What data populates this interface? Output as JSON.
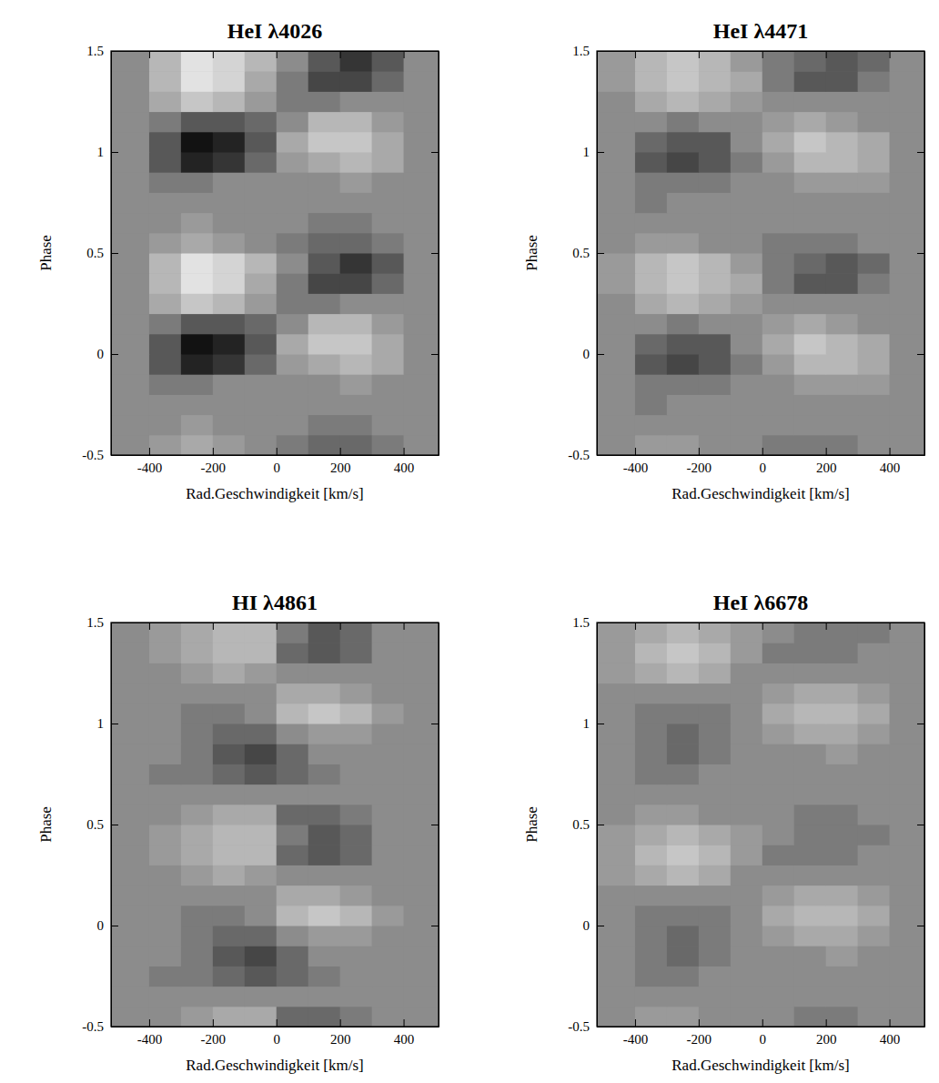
{
  "chart_data": [
    {
      "type": "heatmap",
      "title": "HeI λ4026",
      "xlabel": "Rad.Geschwindigkeit [km/s]",
      "ylabel": "Phase",
      "xlim": [
        -520,
        510
      ],
      "ylim": [
        -0.5,
        1.5
      ],
      "xticks": [
        -400,
        -200,
        0,
        200,
        400
      ],
      "yticks": [
        -0.5,
        0,
        0.5,
        1,
        1.5
      ],
      "zlim": [
        -0.8,
        0.8
      ],
      "x": [
        -520,
        -400,
        -300,
        -200,
        -100,
        0,
        100,
        200,
        300,
        400,
        510
      ],
      "y": [
        -0.5,
        -0.4,
        -0.3,
        -0.2,
        -0.1,
        0,
        0.1,
        0.2,
        0.3,
        0.4,
        0.5,
        0.6,
        0.7,
        0.8,
        0.9,
        1,
        1.1,
        1.2,
        1.3,
        1.4,
        1.5
      ],
      "z": [
        [
          0,
          0.1,
          0.2,
          0.1,
          0,
          -0.1,
          -0.2,
          -0.2,
          -0.1,
          0
        ],
        [
          0,
          0,
          0.1,
          0,
          0,
          0,
          -0.1,
          -0.1,
          0,
          0
        ],
        [
          0,
          0,
          0,
          0,
          0,
          0,
          0,
          0,
          0,
          0
        ],
        [
          0,
          -0.1,
          -0.1,
          0,
          0,
          0,
          0,
          0.1,
          0,
          0
        ],
        [
          0,
          -0.3,
          -0.6,
          -0.5,
          -0.2,
          0.1,
          0.2,
          0.3,
          0.2,
          0
        ],
        [
          0,
          -0.3,
          -0.7,
          -0.6,
          -0.3,
          0.2,
          0.4,
          0.4,
          0.2,
          0
        ],
        [
          0,
          -0.1,
          -0.3,
          -0.3,
          -0.2,
          0,
          0.3,
          0.3,
          0.1,
          0
        ],
        [
          0,
          0.2,
          0.4,
          0.3,
          0.1,
          -0.1,
          -0.1,
          0,
          0,
          0
        ],
        [
          0,
          0.3,
          0.6,
          0.5,
          0.2,
          -0.1,
          -0.4,
          -0.4,
          -0.2,
          0
        ],
        [
          0,
          0.3,
          0.6,
          0.5,
          0.3,
          0,
          -0.3,
          -0.5,
          -0.3,
          0
        ],
        [
          0,
          0.1,
          0.2,
          0.1,
          0,
          -0.1,
          -0.2,
          -0.2,
          -0.1,
          0
        ],
        [
          0,
          0,
          0.1,
          0,
          0,
          0,
          -0.1,
          -0.1,
          0,
          0
        ],
        [
          0,
          0,
          0,
          0,
          0,
          0,
          0,
          0,
          0,
          0
        ],
        [
          0,
          -0.1,
          -0.1,
          0,
          0,
          0,
          0,
          0.1,
          0,
          0
        ],
        [
          0,
          -0.3,
          -0.6,
          -0.5,
          -0.2,
          0.1,
          0.2,
          0.3,
          0.2,
          0
        ],
        [
          0,
          -0.3,
          -0.7,
          -0.6,
          -0.3,
          0.2,
          0.4,
          0.4,
          0.2,
          0
        ],
        [
          0,
          -0.1,
          -0.3,
          -0.3,
          -0.2,
          0,
          0.3,
          0.3,
          0.1,
          0
        ],
        [
          0,
          0.2,
          0.4,
          0.3,
          0.1,
          -0.1,
          -0.1,
          0,
          0,
          0
        ],
        [
          0,
          0.3,
          0.6,
          0.5,
          0.2,
          -0.1,
          -0.4,
          -0.4,
          -0.2,
          0
        ],
        [
          0,
          0.3,
          0.6,
          0.5,
          0.3,
          0,
          -0.3,
          -0.5,
          -0.3,
          0
        ]
      ]
    },
    {
      "type": "heatmap",
      "title": "HeI λ4471",
      "xlabel": "Rad.Geschwindigkeit [km/s]",
      "ylabel": "Phase",
      "xlim": [
        -520,
        510
      ],
      "ylim": [
        -0.5,
        1.5
      ],
      "xticks": [
        -400,
        -200,
        0,
        200,
        400
      ],
      "yticks": [
        -0.5,
        0,
        0.5,
        1,
        1.5
      ],
      "zlim": [
        -0.8,
        0.8
      ],
      "x": [
        -520,
        -400,
        -300,
        -200,
        -100,
        0,
        100,
        200,
        300,
        400,
        510
      ],
      "y": [
        -0.5,
        -0.4,
        -0.3,
        -0.2,
        -0.1,
        0,
        0.1,
        0.2,
        0.3,
        0.4,
        0.5,
        0.6,
        0.7,
        0.8,
        0.9,
        1,
        1.1,
        1.2,
        1.3,
        1.4,
        1.5
      ],
      "z": [
        [
          0,
          0.1,
          0.1,
          0,
          0,
          -0.1,
          -0.1,
          -0.1,
          0,
          0
        ],
        [
          0,
          0,
          0,
          0,
          0,
          0,
          0,
          0,
          0,
          0
        ],
        [
          0,
          -0.1,
          0,
          0,
          0,
          0,
          0,
          0,
          0,
          0
        ],
        [
          0,
          -0.1,
          -0.1,
          -0.1,
          0,
          0,
          0.1,
          0.1,
          0.1,
          0
        ],
        [
          0,
          -0.3,
          -0.4,
          -0.3,
          -0.1,
          0.1,
          0.3,
          0.3,
          0.2,
          0
        ],
        [
          0,
          -0.2,
          -0.3,
          -0.3,
          0,
          0.2,
          0.4,
          0.3,
          0.2,
          0
        ],
        [
          0,
          0,
          -0.1,
          0,
          0,
          0.1,
          0.2,
          0.1,
          0,
          0
        ],
        [
          0,
          0.2,
          0.3,
          0.2,
          0.1,
          0,
          0,
          0,
          0,
          0
        ],
        [
          0.1,
          0.3,
          0.4,
          0.3,
          0.2,
          -0.1,
          -0.3,
          -0.3,
          -0.1,
          0
        ],
        [
          0.1,
          0.3,
          0.4,
          0.3,
          0.1,
          -0.1,
          -0.2,
          -0.3,
          -0.2,
          0
        ],
        [
          0,
          0.1,
          0.1,
          0,
          0,
          -0.1,
          -0.1,
          -0.1,
          0,
          0
        ],
        [
          0,
          0,
          0,
          0,
          0,
          0,
          0,
          0,
          0,
          0
        ],
        [
          0,
          -0.1,
          0,
          0,
          0,
          0,
          0,
          0,
          0,
          0
        ],
        [
          0,
          -0.1,
          -0.1,
          -0.1,
          0,
          0,
          0.1,
          0.1,
          0.1,
          0
        ],
        [
          0,
          -0.3,
          -0.4,
          -0.3,
          -0.1,
          0.1,
          0.3,
          0.3,
          0.2,
          0
        ],
        [
          0,
          -0.2,
          -0.3,
          -0.3,
          0,
          0.2,
          0.4,
          0.3,
          0.2,
          0
        ],
        [
          0,
          0,
          -0.1,
          0,
          0,
          0.1,
          0.2,
          0.1,
          0,
          0
        ],
        [
          0,
          0.2,
          0.3,
          0.2,
          0.1,
          0,
          0,
          0,
          0,
          0
        ],
        [
          0.1,
          0.3,
          0.4,
          0.3,
          0.2,
          -0.1,
          -0.3,
          -0.3,
          -0.1,
          0
        ],
        [
          0.1,
          0.3,
          0.4,
          0.3,
          0.1,
          -0.1,
          -0.2,
          -0.3,
          -0.2,
          0
        ]
      ]
    },
    {
      "type": "heatmap",
      "title": "HI λ4861",
      "xlabel": "Rad.Geschwindigkeit [km/s]",
      "ylabel": "Phase",
      "xlim": [
        -520,
        510
      ],
      "ylim": [
        -0.5,
        1.5
      ],
      "xticks": [
        -400,
        -200,
        0,
        200,
        400
      ],
      "yticks": [
        -0.5,
        0,
        0.5,
        1,
        1.5
      ],
      "zlim": [
        -0.8,
        0.8
      ],
      "x": [
        -520,
        -400,
        -300,
        -200,
        -100,
        0,
        100,
        200,
        300,
        400,
        510
      ],
      "y": [
        -0.5,
        -0.4,
        -0.3,
        -0.2,
        -0.1,
        0,
        0.1,
        0.2,
        0.3,
        0.4,
        0.5,
        0.6,
        0.7,
        0.8,
        0.9,
        1,
        1.1,
        1.2,
        1.3,
        1.4,
        1.5
      ],
      "z": [
        [
          0,
          0,
          0.1,
          0.2,
          0.2,
          -0.2,
          -0.2,
          -0.1,
          0,
          0
        ],
        [
          0,
          0,
          0,
          0,
          0,
          0,
          0,
          0,
          0,
          0
        ],
        [
          0,
          -0.1,
          -0.1,
          -0.2,
          -0.3,
          -0.2,
          -0.1,
          0,
          0,
          0
        ],
        [
          0,
          0,
          -0.1,
          -0.3,
          -0.4,
          -0.2,
          0,
          0,
          0,
          0
        ],
        [
          0,
          0,
          -0.1,
          -0.2,
          -0.2,
          0,
          0.1,
          0.1,
          0,
          0
        ],
        [
          0,
          0,
          -0.1,
          -0.1,
          0,
          0.3,
          0.4,
          0.3,
          0.1,
          0
        ],
        [
          0,
          0,
          0,
          0,
          0,
          0.2,
          0.2,
          0.1,
          0,
          0
        ],
        [
          0,
          0,
          0.1,
          0.2,
          0.1,
          0,
          0,
          0,
          0,
          0
        ],
        [
          0,
          0.1,
          0.2,
          0.3,
          0.3,
          -0.2,
          -0.3,
          -0.2,
          0,
          0
        ],
        [
          0,
          0.1,
          0.2,
          0.3,
          0.3,
          -0.1,
          -0.3,
          -0.2,
          0,
          0
        ],
        [
          0,
          0,
          0.1,
          0.2,
          0.2,
          -0.2,
          -0.2,
          -0.1,
          0,
          0
        ],
        [
          0,
          0,
          0,
          0,
          0,
          0,
          0,
          0,
          0,
          0
        ],
        [
          0,
          -0.1,
          -0.1,
          -0.2,
          -0.3,
          -0.2,
          -0.1,
          0,
          0,
          0
        ],
        [
          0,
          0,
          -0.1,
          -0.3,
          -0.4,
          -0.2,
          0,
          0,
          0,
          0
        ],
        [
          0,
          0,
          -0.1,
          -0.2,
          -0.2,
          0,
          0.1,
          0.1,
          0,
          0
        ],
        [
          0,
          0,
          -0.1,
          -0.1,
          0,
          0.3,
          0.4,
          0.3,
          0.1,
          0
        ],
        [
          0,
          0,
          0,
          0,
          0,
          0.2,
          0.2,
          0.1,
          0,
          0
        ],
        [
          0,
          0,
          0.1,
          0.2,
          0.1,
          0,
          0,
          0,
          0,
          0
        ],
        [
          0,
          0.1,
          0.2,
          0.3,
          0.3,
          -0.2,
          -0.3,
          -0.2,
          0,
          0
        ],
        [
          0,
          0.1,
          0.2,
          0.3,
          0.3,
          -0.1,
          -0.3,
          -0.2,
          0,
          0
        ]
      ]
    },
    {
      "type": "heatmap",
      "title": "HeI λ6678",
      "xlabel": "Rad.Geschwindigkeit [km/s]",
      "ylabel": "Phase",
      "xlim": [
        -520,
        510
      ],
      "ylim": [
        -0.5,
        1.5
      ],
      "xticks": [
        -400,
        -200,
        0,
        200,
        400
      ],
      "yticks": [
        -0.5,
        0,
        0.5,
        1,
        1.5
      ],
      "zlim": [
        -0.8,
        0.8
      ],
      "x": [
        -520,
        -400,
        -300,
        -200,
        -100,
        0,
        100,
        200,
        300,
        400,
        510
      ],
      "y": [
        -0.5,
        -0.4,
        -0.3,
        -0.2,
        -0.1,
        0,
        0.1,
        0.2,
        0.3,
        0.4,
        0.5,
        0.6,
        0.7,
        0.8,
        0.9,
        1,
        1.1,
        1.2,
        1.3,
        1.4,
        1.5
      ],
      "z": [
        [
          0,
          0.1,
          0.1,
          0,
          0,
          0,
          -0.1,
          -0.1,
          0,
          0
        ],
        [
          0,
          0,
          0,
          0,
          0,
          0,
          0,
          0,
          0,
          0
        ],
        [
          0,
          -0.1,
          -0.1,
          0,
          0,
          0,
          0,
          0,
          0,
          0
        ],
        [
          0,
          -0.1,
          -0.2,
          -0.1,
          0,
          0,
          0,
          0.1,
          0,
          0
        ],
        [
          0,
          -0.1,
          -0.2,
          -0.1,
          0,
          0.1,
          0.2,
          0.2,
          0.1,
          0
        ],
        [
          0,
          -0.1,
          -0.1,
          -0.1,
          0,
          0.2,
          0.3,
          0.3,
          0.2,
          0
        ],
        [
          0,
          0,
          0,
          0,
          0,
          0.1,
          0.2,
          0.2,
          0.1,
          0
        ],
        [
          0.1,
          0.2,
          0.3,
          0.2,
          0,
          0,
          0,
          0,
          0,
          0
        ],
        [
          0.1,
          0.3,
          0.4,
          0.3,
          0.1,
          -0.1,
          -0.1,
          -0.1,
          0,
          0
        ],
        [
          0.1,
          0.2,
          0.3,
          0.2,
          0.1,
          0,
          -0.1,
          -0.1,
          -0.1,
          0
        ],
        [
          0,
          0.1,
          0.1,
          0,
          0,
          0,
          -0.1,
          -0.1,
          0,
          0
        ],
        [
          0,
          0,
          0,
          0,
          0,
          0,
          0,
          0,
          0,
          0
        ],
        [
          0,
          -0.1,
          -0.1,
          0,
          0,
          0,
          0,
          0,
          0,
          0
        ],
        [
          0,
          -0.1,
          -0.2,
          -0.1,
          0,
          0,
          0,
          0.1,
          0,
          0
        ],
        [
          0,
          -0.1,
          -0.2,
          -0.1,
          0,
          0.1,
          0.2,
          0.2,
          0.1,
          0
        ],
        [
          0,
          -0.1,
          -0.1,
          -0.1,
          0,
          0.2,
          0.3,
          0.3,
          0.2,
          0
        ],
        [
          0,
          0,
          0,
          0,
          0,
          0.1,
          0.2,
          0.2,
          0.1,
          0
        ],
        [
          0.1,
          0.2,
          0.3,
          0.2,
          0,
          0,
          0,
          0,
          0,
          0
        ],
        [
          0.1,
          0.3,
          0.4,
          0.3,
          0.1,
          -0.1,
          -0.1,
          -0.1,
          0,
          0
        ],
        [
          0.1,
          0.2,
          0.3,
          0.2,
          0.1,
          0,
          -0.1,
          -0.1,
          -0.1,
          0
        ]
      ]
    }
  ]
}
